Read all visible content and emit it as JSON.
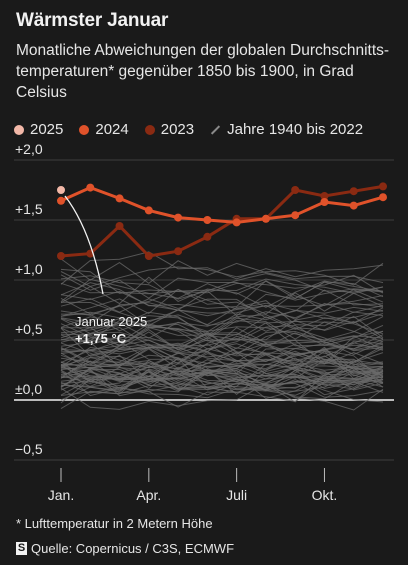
{
  "title": "Wärmster Januar",
  "subtitle": "Monatliche Abweichungen der globalen Durchschnitts­temperaturen* gegenüber 1850 bis 1900, in Grad Celsius",
  "legend": [
    {
      "label": "2025",
      "color": "#f2b8a8",
      "kind": "dot"
    },
    {
      "label": "2024",
      "color": "#e0522a",
      "kind": "dot"
    },
    {
      "label": "2023",
      "color": "#8a2a12",
      "kind": "dot"
    },
    {
      "label": "Jahre 1940 bis 2022",
      "color": "#6b6b6b",
      "kind": "line"
    }
  ],
  "annotation": {
    "line1": "Januar 2025",
    "line2": "+1,75 °C"
  },
  "footnote": "* Lufttemperatur in 2 Metern Höhe",
  "source": {
    "logo": "S",
    "text": "Quelle: Copernicus / C3S, ECMWF"
  },
  "colors": {
    "background": "#1a1a1a",
    "grid": "#4a4a4a",
    "baseline": "#f2f2f2",
    "history": "#6b6b6b"
  },
  "chart_data": {
    "type": "line",
    "ylim": [
      -0.5,
      2.0
    ],
    "yticks": [
      {
        "value": 2.0,
        "label": "+2,0"
      },
      {
        "value": 1.5,
        "label": "+1,5"
      },
      {
        "value": 1.0,
        "label": "+1,0"
      },
      {
        "value": 0.5,
        "label": "+0,5"
      },
      {
        "value": 0.0,
        "label": "±0,0"
      },
      {
        "value": -0.5,
        "label": "−0,5"
      }
    ],
    "xticks": [
      {
        "month": 1,
        "label": "Jan."
      },
      {
        "month": 4,
        "label": "Apr."
      },
      {
        "month": 7,
        "label": "Juli"
      },
      {
        "month": 10,
        "label": "Okt."
      }
    ],
    "series": [
      {
        "name": "2025",
        "values": [
          1.75
        ]
      },
      {
        "name": "2024",
        "values": [
          1.66,
          1.77,
          1.68,
          1.58,
          1.52,
          1.5,
          1.48,
          1.51,
          1.54,
          1.65,
          1.62,
          1.69
        ]
      },
      {
        "name": "2023",
        "values": [
          1.2,
          1.22,
          1.45,
          1.2,
          1.24,
          1.36,
          1.51,
          1.51,
          1.75,
          1.7,
          1.74,
          1.78
        ]
      }
    ],
    "history_range": "1940–2022"
  }
}
